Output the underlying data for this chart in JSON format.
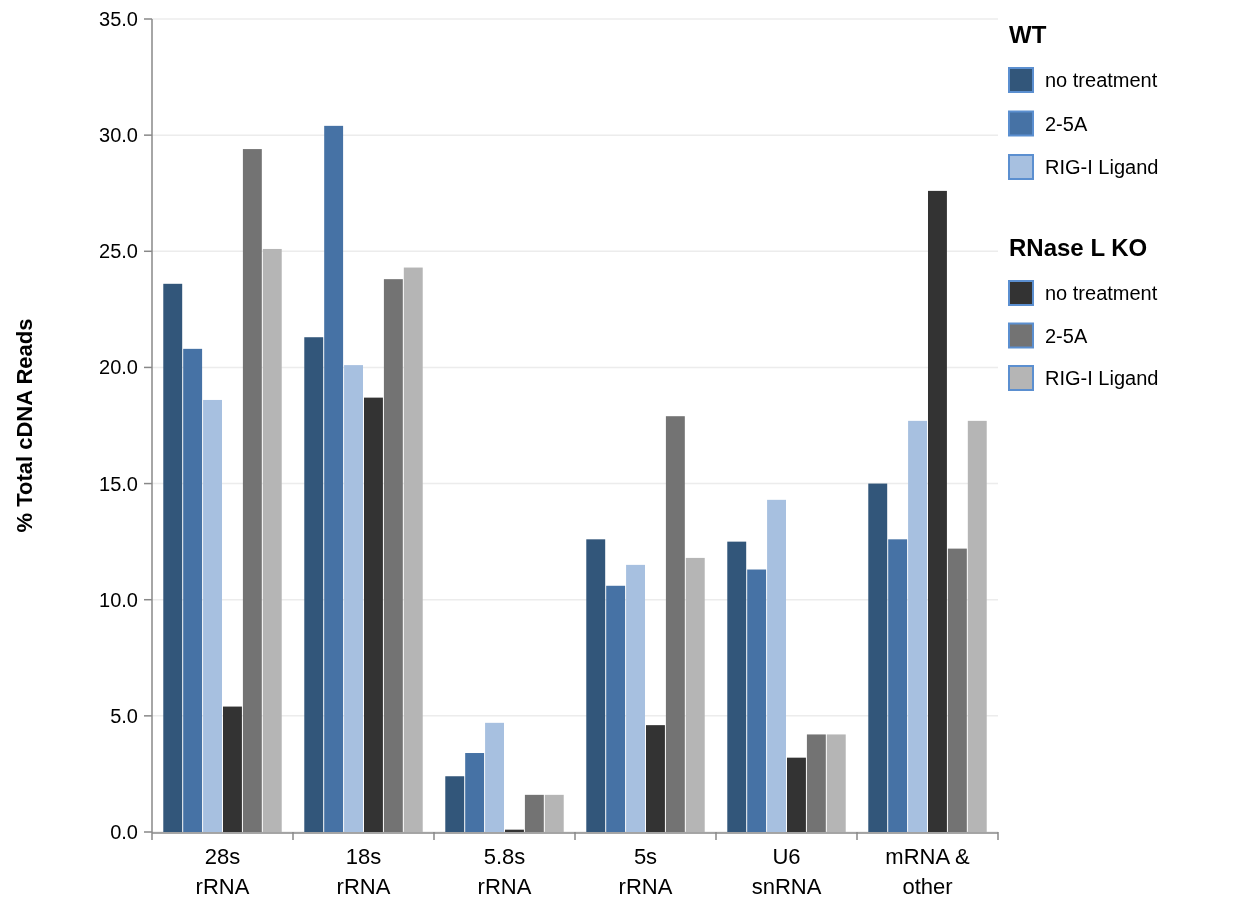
{
  "chart_data": {
    "type": "bar",
    "ylabel": "% Total cDNA Reads",
    "legend_title": "WT",
    "annotations": [
      "RNase L KO"
    ],
    "categories": [
      "28s\nrRNA",
      "18s\nrRNA",
      "5.8s\nrRNA",
      "5s\nrRNA",
      "U6\nsnRNA",
      "mRNA &\nother"
    ],
    "series": [
      {
        "name": "no treatment",
        "color": "#32567a",
        "values": [
          23.6,
          21.3,
          2.4,
          12.6,
          12.5,
          15.0
        ]
      },
      {
        "name": "2-5A",
        "color": "#4672a5",
        "values": [
          20.8,
          30.4,
          3.4,
          10.6,
          11.3,
          12.6
        ]
      },
      {
        "name": "RIG-I Ligand",
        "color": "#a7c0e0",
        "values": [
          18.6,
          20.1,
          4.7,
          11.5,
          14.3,
          17.7
        ]
      },
      {
        "name": "no treatment",
        "color": "#333333",
        "values": [
          5.4,
          18.7,
          0.1,
          4.6,
          3.2,
          27.6
        ]
      },
      {
        "name": "2-5A",
        "color": "#737373",
        "values": [
          29.4,
          23.8,
          1.6,
          17.9,
          4.2,
          12.2
        ]
      },
      {
        "name": "RIG-I Ligand",
        "color": "#b5b5b5",
        "values": [
          25.1,
          24.3,
          1.6,
          11.8,
          4.2,
          17.7
        ]
      }
    ],
    "ylim": [
      0,
      35
    ],
    "yticks": [
      {
        "value": 0,
        "label": "0.0"
      },
      {
        "value": 5,
        "label": "5.0"
      },
      {
        "value": 10,
        "label": "10.0"
      },
      {
        "value": 15,
        "label": "15.0"
      },
      {
        "value": 20,
        "label": "20.0"
      },
      {
        "value": 25,
        "label": "25.0"
      },
      {
        "value": 30,
        "label": "30.0"
      },
      {
        "value": 35,
        "label": "35.0"
      }
    ],
    "grid": "y",
    "legend": "right"
  }
}
